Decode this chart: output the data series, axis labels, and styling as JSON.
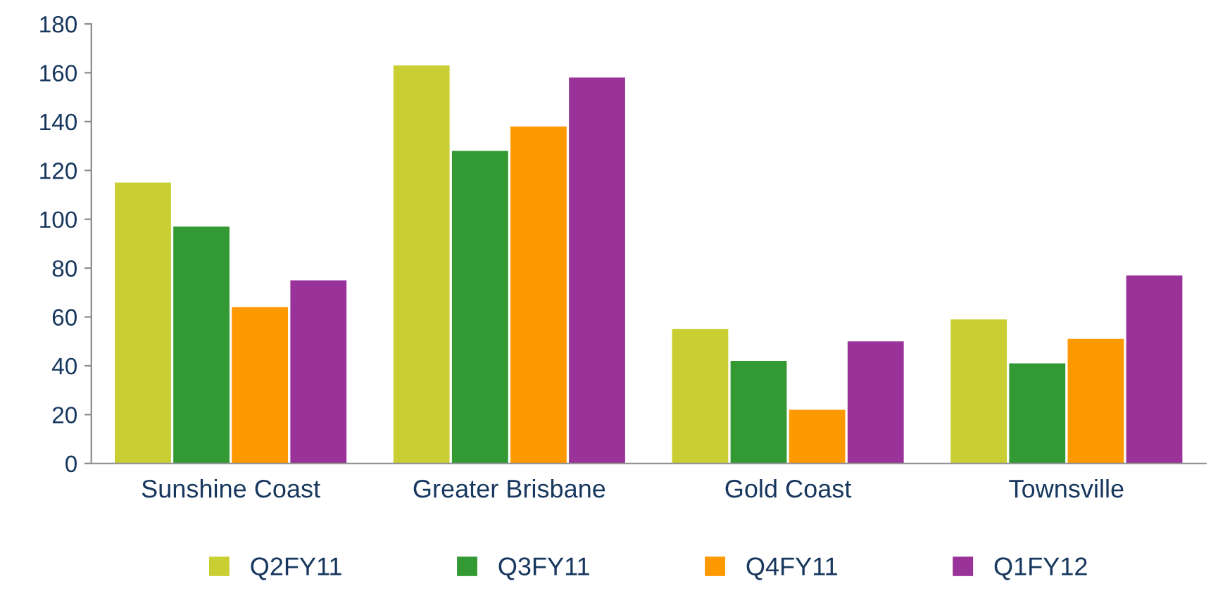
{
  "chart_data": {
    "type": "bar",
    "categories": [
      "Sunshine Coast",
      "Greater Brisbane",
      "Gold Coast",
      "Townsville"
    ],
    "series": [
      {
        "name": "Q2FY11",
        "color": "#c9cf33",
        "values": [
          115,
          163,
          55,
          59
        ]
      },
      {
        "name": "Q3FY11",
        "color": "#339933",
        "values": [
          97,
          128,
          42,
          41
        ]
      },
      {
        "name": "Q4FY11",
        "color": "#ff9900",
        "values": [
          64,
          138,
          22,
          51
        ]
      },
      {
        "name": "Q1FY12",
        "color": "#993399",
        "values": [
          75,
          158,
          50,
          77
        ]
      }
    ],
    "ylim": [
      0,
      180
    ],
    "yticks": [
      0,
      20,
      40,
      60,
      80,
      100,
      120,
      140,
      160,
      180
    ],
    "grid": false,
    "legend": "bottom"
  }
}
